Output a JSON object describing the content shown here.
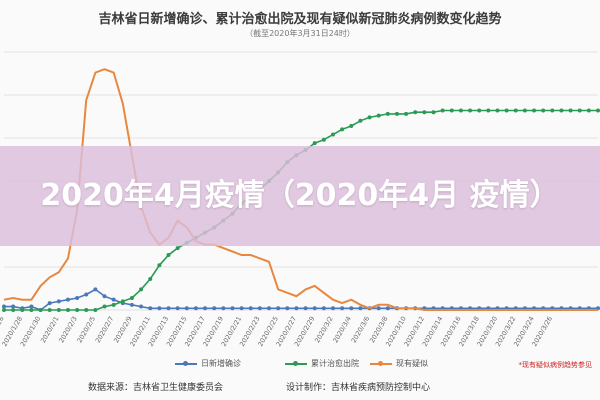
{
  "header": {
    "title": "吉林省日新增确诊、累计治愈出院及现有疑似新冠肺炎病例数变化趋势",
    "subtitle": "（截至2020年3月31日24时）"
  },
  "overlay": {
    "caption": "2020年4月疫情（2020年4月 疫情）"
  },
  "legend": {
    "items": [
      {
        "label": "日新增确诊",
        "color": "#4a78b8"
      },
      {
        "label": "累计治愈出院",
        "color": "#2a9a55"
      },
      {
        "label": "现有疑似",
        "color": "#e9873f"
      }
    ],
    "note": "*现有疑似病例趋势参见"
  },
  "footer": {
    "source": "数据来源：吉林省卫生健康委员会",
    "design": "设计制作：吉林省疾病预防控制中心"
  },
  "chart_data": {
    "type": "line",
    "x": [
      "2020/1/26",
      "2020/1/27",
      "2020/1/28",
      "2020/1/29",
      "2020/1/30",
      "2020/1/31",
      "2020/2/1",
      "2020/2/2",
      "2020/2/3",
      "2020/2/4",
      "2020/2/5",
      "2020/2/6",
      "2020/2/7",
      "2020/2/8",
      "2020/2/9",
      "2020/2/10",
      "2020/2/11",
      "2020/2/12",
      "2020/2/13",
      "2020/2/14",
      "2020/2/15",
      "2020/2/16",
      "2020/2/17",
      "2020/2/18",
      "2020/2/19",
      "2020/2/20",
      "2020/2/21",
      "2020/2/22",
      "2020/2/23",
      "2020/2/24",
      "2020/2/25",
      "2020/2/26",
      "2020/2/27",
      "2020/2/28",
      "2020/2/29",
      "2020/3/1",
      "2020/3/2",
      "2020/3/3",
      "2020/3/4",
      "2020/3/5",
      "2020/3/6",
      "2020/3/7",
      "2020/3/8",
      "2020/3/9",
      "2020/3/10",
      "2020/3/11",
      "2020/3/12",
      "2020/3/13",
      "2020/3/14",
      "2020/3/15",
      "2020/3/16",
      "2020/3/17",
      "2020/3/18",
      "2020/3/19",
      "2020/3/20",
      "2020/3/21",
      "2020/3/22",
      "2020/3/23",
      "2020/3/24",
      "2020/3/25",
      "2020/3/26",
      "2020/3/27",
      "2020/3/28",
      "2020/3/29",
      "2020/3/30",
      "2020/3/31"
    ],
    "tick_labels": [
      "2020/1/26",
      "2020/1/28",
      "2020/1/30",
      "2020/2/1",
      "2020/2/3",
      "2020/2/5",
      "2020/2/7",
      "2020/2/9",
      "2020/2/11",
      "2020/2/13",
      "2020/2/15",
      "2020/2/17",
      "2020/2/19",
      "2020/2/21",
      "2020/2/23",
      "2020/2/25",
      "2020/2/27",
      "2020/2/29",
      "2020/3/2",
      "2020/3/4",
      "2020/3/6",
      "2020/3/8",
      "2020/3/10",
      "2020/3/12",
      "2020/3/14",
      "2020/3/16",
      "2020/3/18",
      "2020/3/20",
      "2020/3/22",
      "2020/3/24",
      "2020/3/26"
    ],
    "series": [
      {
        "name": "日新增确诊",
        "color": "#4a78b8",
        "values": [
          2,
          2,
          1,
          2,
          0,
          4,
          5,
          6,
          7,
          9,
          12,
          8,
          6,
          4,
          3,
          2,
          1,
          1,
          1,
          1,
          1,
          1,
          1,
          1,
          1,
          1,
          1,
          1,
          1,
          1,
          1,
          1,
          1,
          1,
          1,
          1,
          1,
          1,
          1,
          1,
          1,
          1,
          1,
          1,
          1,
          1,
          1,
          1,
          1,
          1,
          1,
          1,
          1,
          1,
          1,
          1,
          1,
          1,
          1,
          1,
          1,
          1,
          1,
          1,
          1,
          1
        ]
      },
      {
        "name": "累计治愈出院",
        "color": "#2a9a55",
        "values": [
          0,
          0,
          0,
          0,
          0,
          0,
          0,
          0,
          0,
          0,
          0,
          2,
          3,
          5,
          7,
          12,
          18,
          26,
          32,
          36,
          39,
          42,
          45,
          48,
          52,
          56,
          62,
          66,
          70,
          75,
          80,
          86,
          90,
          93,
          97,
          99,
          102,
          105,
          107,
          110,
          112,
          113,
          114,
          114,
          114,
          115,
          115,
          115,
          116,
          116,
          116,
          116,
          116,
          116,
          116,
          116,
          116,
          116,
          116,
          116,
          116,
          116,
          116,
          116,
          116,
          116
        ]
      },
      {
        "name": "现有疑似",
        "color": "#e9873f",
        "values": [
          6,
          7,
          6,
          6,
          14,
          19,
          22,
          30,
          58,
          122,
          138,
          140,
          138,
          120,
          90,
          60,
          45,
          38,
          42,
          52,
          48,
          40,
          38,
          38,
          36,
          34,
          32,
          32,
          30,
          28,
          12,
          10,
          8,
          12,
          14,
          10,
          6,
          4,
          6,
          3,
          1,
          3,
          3,
          1,
          1,
          1,
          0,
          0,
          0,
          0,
          0,
          0,
          0,
          0,
          0,
          0,
          0,
          0,
          0,
          0,
          0,
          0,
          0,
          0,
          0,
          0
        ]
      }
    ]
  }
}
